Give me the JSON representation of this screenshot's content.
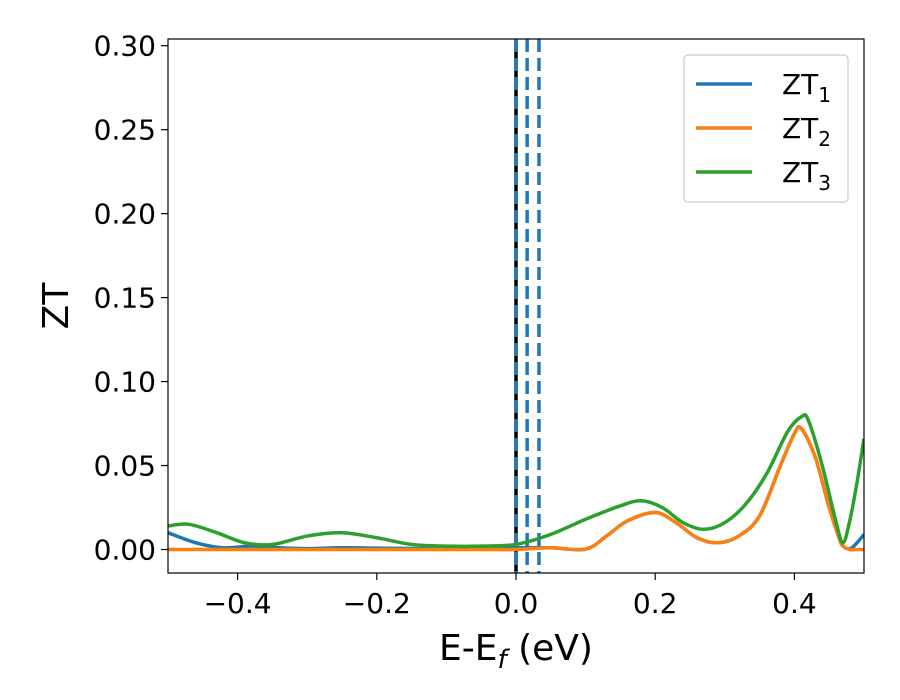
{
  "chart_data": {
    "type": "line",
    "title": "",
    "xlabel": "E-E",
    "xlabel_sub": "f",
    "xlabel_unit": " (eV)",
    "ylabel": "ZT",
    "xlim": [
      -0.5,
      0.5
    ],
    "ylim": [
      -0.014,
      0.304
    ],
    "xticks": [
      -0.4,
      -0.2,
      0.0,
      0.2,
      0.4
    ],
    "xtick_labels": [
      "−0.4",
      "−0.2",
      "0.0",
      "0.2",
      "0.4"
    ],
    "yticks": [
      0.0,
      0.05,
      0.1,
      0.15,
      0.2,
      0.25,
      0.3
    ],
    "ytick_labels": [
      "0.00",
      "0.05",
      "0.10",
      "0.15",
      "0.20",
      "0.25",
      "0.30"
    ],
    "grid": false,
    "legend_position": "top-right",
    "vlines": [
      {
        "x": 0.0,
        "color": "#000000",
        "style": "solid"
      },
      {
        "x": 0.0,
        "color": "#1f77b4",
        "style": "dashed"
      },
      {
        "x": 0.016,
        "color": "#1f77b4",
        "style": "dashed"
      },
      {
        "x": 0.033,
        "color": "#1f77b4",
        "style": "dashed"
      }
    ],
    "series": [
      {
        "name": "ZT",
        "subscript": "1",
        "color": "#1f77b4",
        "x": [
          -0.5,
          -0.46,
          -0.42,
          -0.38,
          -0.34,
          -0.3,
          -0.25,
          -0.2,
          -0.15,
          -0.1,
          -0.05,
          0.0,
          0.05,
          0.1,
          0.13,
          0.16,
          0.2,
          0.23,
          0.26,
          0.29,
          0.32,
          0.35,
          0.38,
          0.4,
          0.41,
          0.43,
          0.45,
          0.465,
          0.47,
          0.48,
          0.49,
          0.5
        ],
        "y": [
          0.01,
          0.004,
          0.001,
          0.002,
          0.001,
          0.0005,
          0.001,
          0.0008,
          0.0006,
          0.0004,
          0.0005,
          0.001,
          0.001,
          0.0002,
          0.008,
          0.017,
          0.022,
          0.016,
          0.007,
          0.004,
          0.008,
          0.02,
          0.05,
          0.069,
          0.072,
          0.055,
          0.025,
          0.006,
          0.002,
          0.0005,
          0.004,
          0.009
        ]
      },
      {
        "name": "ZT",
        "subscript": "2",
        "color": "#ff7f0e",
        "x": [
          -0.5,
          -0.46,
          -0.42,
          -0.38,
          -0.34,
          -0.3,
          -0.25,
          -0.2,
          -0.15,
          -0.1,
          -0.05,
          0.0,
          0.05,
          0.1,
          0.13,
          0.16,
          0.2,
          0.23,
          0.26,
          0.29,
          0.32,
          0.35,
          0.38,
          0.4,
          0.41,
          0.43,
          0.45,
          0.465,
          0.47,
          0.48,
          0.49,
          0.5
        ],
        "y": [
          0.0,
          0.0,
          0.0,
          0.0,
          0.0,
          0.0,
          0.0,
          0.0,
          0.0,
          0.0,
          0.0,
          0.0,
          0.001,
          0.0002,
          0.008,
          0.017,
          0.022,
          0.016,
          0.007,
          0.004,
          0.008,
          0.02,
          0.05,
          0.069,
          0.072,
          0.055,
          0.025,
          0.006,
          0.002,
          0.0,
          0.0,
          0.0
        ]
      },
      {
        "name": "ZT",
        "subscript": "3",
        "color": "#2ca02c",
        "x": [
          -0.5,
          -0.47,
          -0.43,
          -0.39,
          -0.35,
          -0.3,
          -0.25,
          -0.2,
          -0.15,
          -0.1,
          -0.05,
          0.0,
          0.05,
          0.1,
          0.15,
          0.18,
          0.21,
          0.24,
          0.27,
          0.3,
          0.33,
          0.36,
          0.39,
          0.41,
          0.42,
          0.44,
          0.46,
          0.47,
          0.48,
          0.49,
          0.5
        ],
        "y": [
          0.014,
          0.015,
          0.01,
          0.004,
          0.003,
          0.008,
          0.01,
          0.007,
          0.003,
          0.002,
          0.002,
          0.003,
          0.009,
          0.018,
          0.026,
          0.029,
          0.025,
          0.016,
          0.012,
          0.016,
          0.027,
          0.045,
          0.07,
          0.079,
          0.077,
          0.05,
          0.016,
          0.004,
          0.018,
          0.04,
          0.066
        ]
      }
    ]
  }
}
